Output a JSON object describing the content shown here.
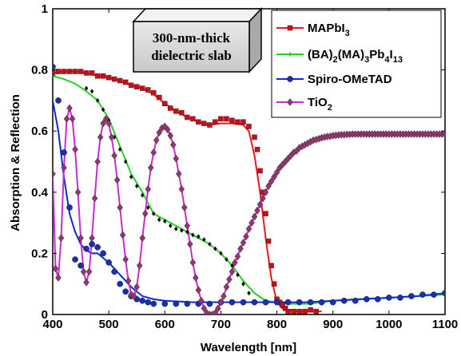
{
  "chart_data": {
    "type": "line",
    "xlabel": "Wavelength [nm]",
    "ylabel": "Absorption & Reflection",
    "xlim": [
      400,
      1100
    ],
    "ylim": [
      0,
      1
    ],
    "xticks": [
      "400",
      "500",
      "600",
      "700",
      "800",
      "900",
      "1000",
      "1100"
    ],
    "yticks": [
      "0",
      "0.2",
      "0.4",
      "0.6",
      "0.8",
      "1"
    ],
    "annotation": {
      "line1": "300-nm-thick",
      "line2": "dielectric slab"
    },
    "legend_position": "top-right",
    "grid": false,
    "series": [
      {
        "name": "MAPbI3",
        "name_main": "MAPbI",
        "name_sub": "3",
        "color": "#e8191f",
        "marker": "square",
        "marker_color": "#c0121a",
        "x": [
          400,
          420,
          440,
          460,
          480,
          500,
          520,
          540,
          560,
          580,
          600,
          620,
          640,
          660,
          680,
          700,
          720,
          740,
          750,
          760,
          770,
          780,
          790,
          800,
          810,
          820,
          830,
          840,
          860,
          880
        ],
        "y": [
          0.79,
          0.795,
          0.795,
          0.79,
          0.78,
          0.775,
          0.765,
          0.75,
          0.74,
          0.72,
          0.69,
          0.665,
          0.645,
          0.63,
          0.62,
          0.625,
          0.625,
          0.62,
          0.6,
          0.52,
          0.4,
          0.25,
          0.12,
          0.04,
          0.02,
          0.015,
          0.012,
          0.01,
          0.01,
          0.01
        ],
        "mx": [
          400,
          410,
          420,
          430,
          440,
          450,
          460,
          470,
          480,
          490,
          500,
          510,
          520,
          530,
          540,
          550,
          560,
          570,
          580,
          590,
          600,
          610,
          620,
          630,
          640,
          650,
          660,
          670,
          680,
          690,
          700,
          710,
          720,
          730,
          740,
          750,
          760,
          765,
          770,
          775,
          780,
          785,
          790,
          795,
          800,
          805,
          810,
          815,
          820,
          830,
          840,
          850,
          860,
          870
        ],
        "my": [
          0.79,
          0.795,
          0.795,
          0.795,
          0.795,
          0.795,
          0.79,
          0.79,
          0.78,
          0.78,
          0.775,
          0.77,
          0.765,
          0.76,
          0.75,
          0.745,
          0.74,
          0.735,
          0.725,
          0.71,
          0.69,
          0.675,
          0.665,
          0.66,
          0.645,
          0.64,
          0.63,
          0.625,
          0.62,
          0.63,
          0.64,
          0.64,
          0.635,
          0.63,
          0.63,
          0.615,
          0.58,
          0.54,
          0.47,
          0.4,
          0.33,
          0.24,
          0.16,
          0.1,
          0.05,
          0.04,
          0.03,
          0.02,
          0.01,
          0.01,
          0.01,
          0.01,
          0.015,
          0.01
        ]
      },
      {
        "name": "(BA)2(MA)3Pb4I13",
        "name_parts": [
          "(BA)",
          "2",
          "(MA)",
          "3",
          "Pb",
          "4",
          "I",
          "13"
        ],
        "color": "#22d31e",
        "marker": "diamond-small",
        "marker_color": "#000000",
        "x": [
          400,
          420,
          440,
          460,
          480,
          500,
          520,
          540,
          560,
          580,
          600,
          620,
          640,
          660,
          680,
          700,
          720,
          740,
          760,
          780,
          800,
          820,
          840,
          860,
          880,
          900,
          940,
          1000,
          1050,
          1100
        ],
        "y": [
          0.78,
          0.77,
          0.755,
          0.73,
          0.7,
          0.64,
          0.55,
          0.46,
          0.4,
          0.33,
          0.31,
          0.29,
          0.27,
          0.25,
          0.23,
          0.2,
          0.16,
          0.11,
          0.07,
          0.045,
          0.04,
          0.035,
          0.035,
          0.035,
          0.04,
          0.045,
          0.05,
          0.055,
          0.06,
          0.065
        ],
        "mx": [
          460,
          470,
          480,
          490,
          500,
          510,
          520,
          530,
          540,
          550,
          560,
          570,
          580,
          590,
          600,
          610,
          620,
          630,
          640,
          650,
          660,
          670,
          680,
          690,
          700,
          710,
          720,
          730,
          740,
          750
        ],
        "my": [
          0.74,
          0.73,
          0.7,
          0.67,
          0.635,
          0.58,
          0.54,
          0.5,
          0.45,
          0.42,
          0.39,
          0.35,
          0.33,
          0.31,
          0.305,
          0.29,
          0.28,
          0.275,
          0.27,
          0.26,
          0.255,
          0.245,
          0.23,
          0.215,
          0.2,
          0.18,
          0.16,
          0.13,
          0.1,
          0.07
        ]
      },
      {
        "name": "Spiro-OMeTAD",
        "color": "#1028d8",
        "marker": "circle",
        "marker_color": "#1c2fa3",
        "x": [
          400,
          410,
          420,
          430,
          440,
          450,
          460,
          470,
          480,
          500,
          520,
          540,
          560,
          580,
          600,
          650,
          700,
          750,
          800,
          850,
          900,
          950,
          1000,
          1050,
          1100
        ],
        "y": [
          0.7,
          0.6,
          0.45,
          0.33,
          0.27,
          0.23,
          0.21,
          0.2,
          0.2,
          0.17,
          0.13,
          0.09,
          0.06,
          0.05,
          0.045,
          0.04,
          0.04,
          0.04,
          0.04,
          0.04,
          0.045,
          0.05,
          0.055,
          0.06,
          0.07
        ],
        "mx": [
          400,
          410,
          420,
          430,
          440,
          450,
          460,
          470,
          480,
          490,
          500,
          510,
          520,
          530,
          540,
          550,
          560,
          570,
          580,
          600,
          620,
          640,
          660,
          680,
          700,
          720,
          740,
          760,
          780,
          800,
          820,
          840,
          860,
          880,
          900,
          920,
          940,
          960,
          980,
          1000,
          1020,
          1040,
          1060,
          1080,
          1100
        ],
        "my": [
          0.81,
          0.7,
          0.53,
          0.35,
          0.18,
          0.16,
          0.215,
          0.23,
          0.22,
          0.2,
          0.17,
          0.14,
          0.1,
          0.075,
          0.06,
          0.05,
          0.045,
          0.04,
          0.035,
          0.035,
          0.035,
          0.035,
          0.035,
          0.035,
          0.04,
          0.04,
          0.04,
          0.04,
          0.04,
          0.04,
          0.04,
          0.04,
          0.04,
          0.04,
          0.04,
          0.045,
          0.045,
          0.05,
          0.05,
          0.055,
          0.055,
          0.06,
          0.065,
          0.065,
          0.07
        ]
      },
      {
        "name": "TiO2",
        "name_main": "TiO",
        "name_sub": "2",
        "color": "#c82ad6",
        "marker": "diamond",
        "marker_color": "#8c3a6e",
        "x": [
          400,
          405,
          410,
          415,
          420,
          425,
          430,
          435,
          440,
          445,
          450,
          455,
          460,
          465,
          470,
          475,
          480,
          485,
          490,
          495,
          500,
          505,
          510,
          515,
          520,
          525,
          530,
          535,
          540,
          545,
          550,
          555,
          560,
          565,
          570,
          575,
          580,
          585,
          590,
          595,
          600,
          605,
          610,
          615,
          620,
          625,
          630,
          635,
          640,
          645,
          650,
          655,
          660,
          665,
          670,
          675,
          680,
          685,
          690,
          695,
          700,
          705,
          710,
          715,
          720,
          725,
          730,
          735,
          740,
          745,
          750,
          755,
          760,
          765,
          770,
          775,
          780,
          785,
          790,
          795,
          800,
          805,
          810,
          815,
          820,
          825,
          830,
          835,
          840,
          845,
          850,
          855,
          860,
          865,
          870,
          875,
          880,
          885,
          890,
          895,
          900,
          905,
          910,
          915,
          920,
          925,
          930,
          935,
          940,
          945,
          950,
          955,
          960,
          965,
          970,
          975,
          980,
          985,
          990,
          995,
          1000,
          1005,
          1010,
          1015,
          1020,
          1025,
          1030,
          1035,
          1040,
          1045,
          1050,
          1055,
          1060,
          1065,
          1070,
          1075,
          1080,
          1085,
          1090,
          1095,
          1100
        ],
        "y": [
          0.46,
          0.15,
          0.12,
          0.25,
          0.48,
          0.64,
          0.675,
          0.64,
          0.54,
          0.4,
          0.25,
          0.14,
          0.105,
          0.14,
          0.25,
          0.38,
          0.5,
          0.58,
          0.625,
          0.64,
          0.625,
          0.58,
          0.52,
          0.44,
          0.35,
          0.26,
          0.18,
          0.11,
          0.065,
          0.06,
          0.09,
          0.16,
          0.25,
          0.33,
          0.41,
          0.48,
          0.53,
          0.57,
          0.595,
          0.61,
          0.615,
          0.605,
          0.585,
          0.555,
          0.51,
          0.46,
          0.41,
          0.35,
          0.29,
          0.23,
          0.17,
          0.12,
          0.08,
          0.045,
          0.02,
          0.005,
          0.0,
          0.0,
          0.005,
          0.02,
          0.04,
          0.06,
          0.09,
          0.115,
          0.14,
          0.17,
          0.19,
          0.215,
          0.235,
          0.255,
          0.28,
          0.3,
          0.32,
          0.34,
          0.36,
          0.38,
          0.4,
          0.42,
          0.435,
          0.45,
          0.465,
          0.48,
          0.49,
          0.5,
          0.51,
          0.52,
          0.53,
          0.535,
          0.545,
          0.55,
          0.555,
          0.56,
          0.565,
          0.57,
          0.572,
          0.575,
          0.578,
          0.58,
          0.582,
          0.583,
          0.585,
          0.586,
          0.587,
          0.588,
          0.588,
          0.589,
          0.589,
          0.59,
          0.59,
          0.59,
          0.59,
          0.59,
          0.59,
          0.59,
          0.59,
          0.59,
          0.59,
          0.59,
          0.59,
          0.59,
          0.59,
          0.59,
          0.59,
          0.59,
          0.59,
          0.59,
          0.59,
          0.59,
          0.59,
          0.59,
          0.59,
          0.59,
          0.59,
          0.59,
          0.59,
          0.59,
          0.59,
          0.59,
          0.59,
          0.59,
          0.59
        ],
        "x_shift": 0
      }
    ]
  }
}
